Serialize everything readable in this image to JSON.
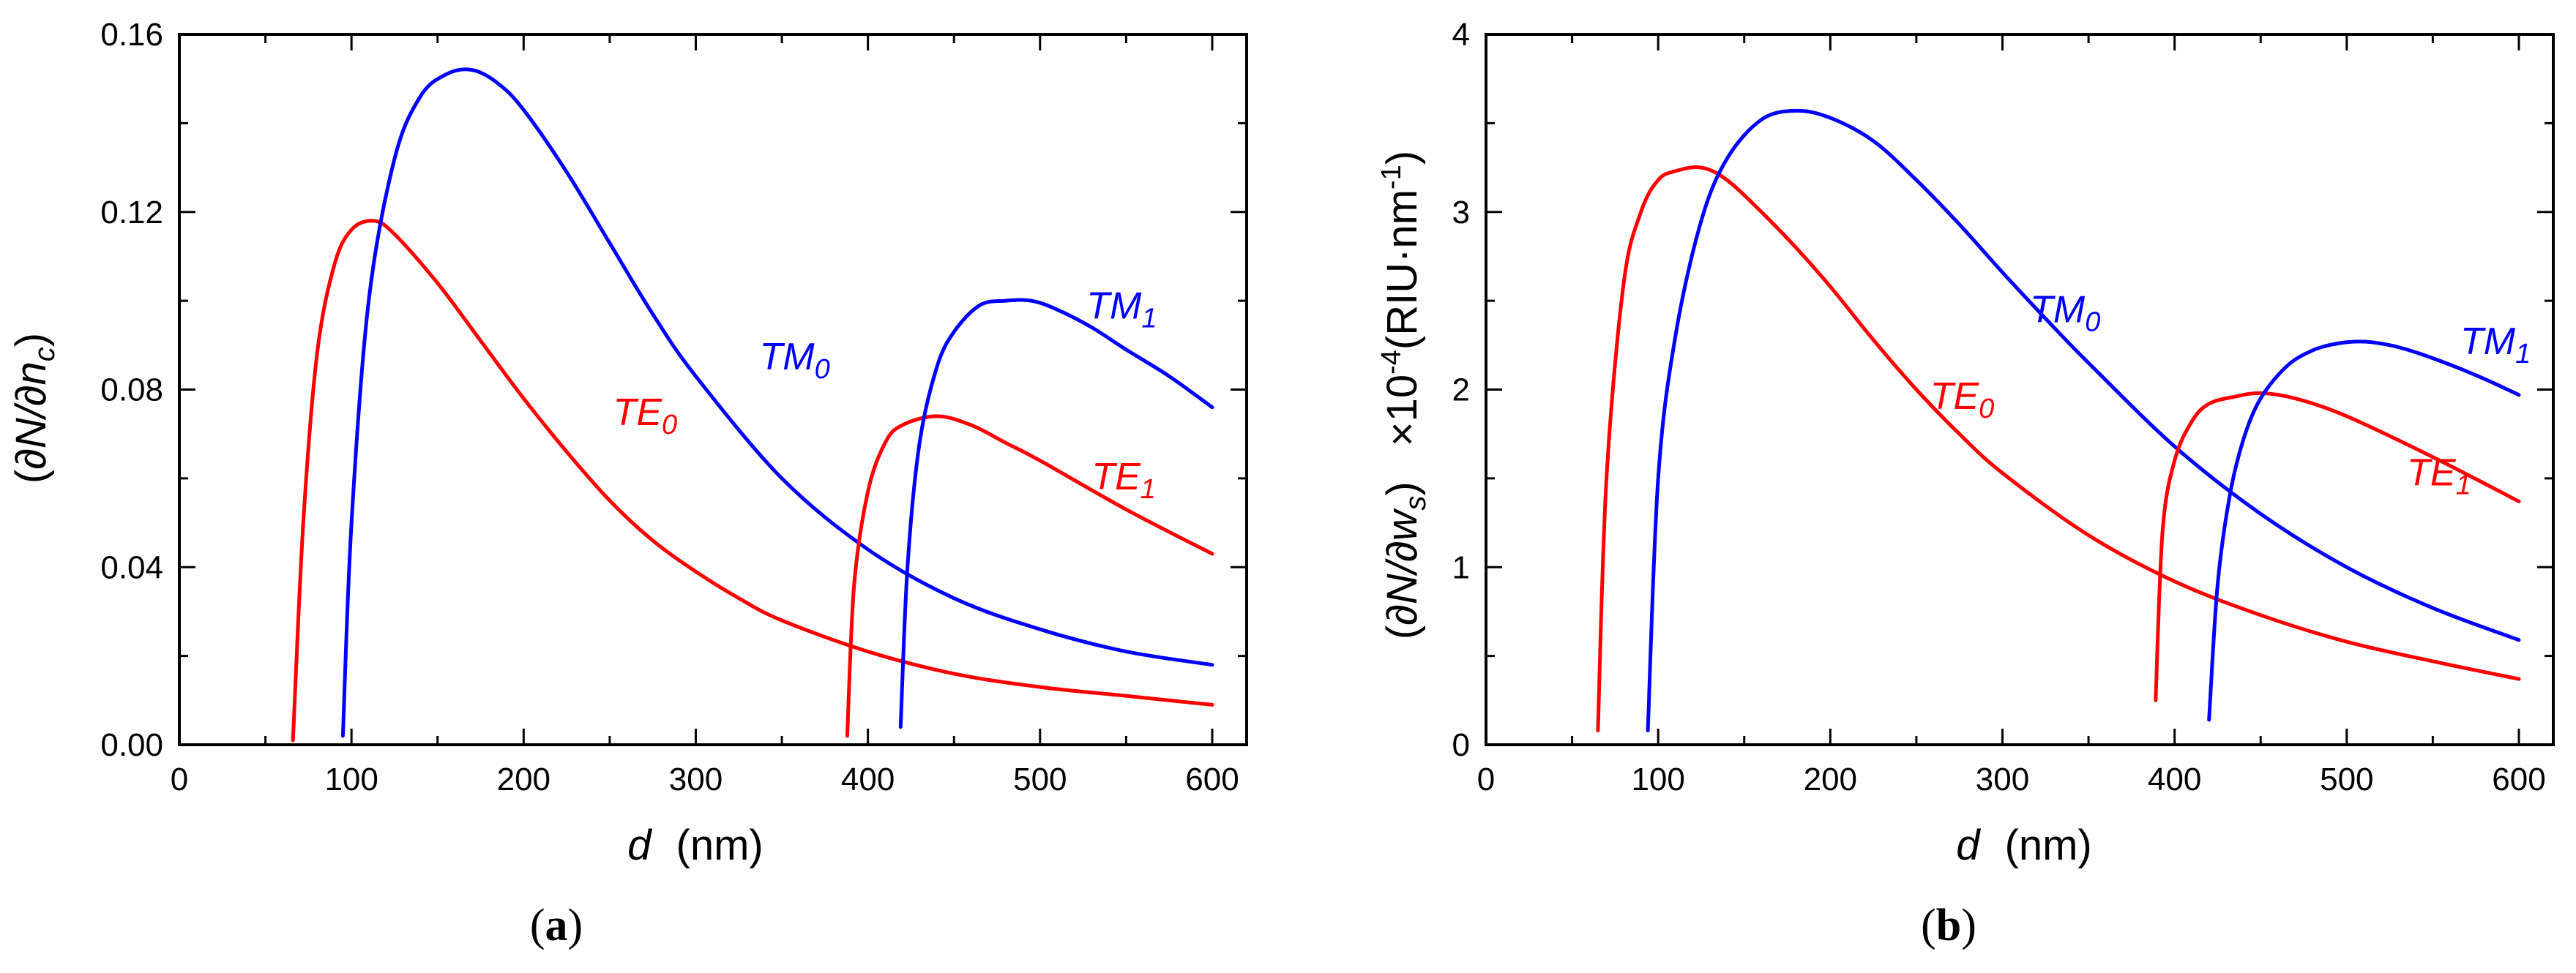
{
  "colors": {
    "te": "#ff0000",
    "tm": "#0000ff",
    "axis": "#000000"
  },
  "chart_data": [
    {
      "type": "line",
      "panel": "a",
      "panel_label": {
        "open": "(",
        "letter": "a",
        "close": ")"
      },
      "xlabel": {
        "var": "d",
        "unit": "(nm)"
      },
      "ylabel": {
        "open": "(",
        "num": "∂N/∂n",
        "sub": "c",
        "close": ")"
      },
      "xlim": [
        0,
        620
      ],
      "ylim": [
        0,
        0.16
      ],
      "xticks": [
        0,
        100,
        200,
        300,
        400,
        500,
        600
      ],
      "xtick_labels": [
        "0",
        "100",
        "200",
        "300",
        "400",
        "500",
        "600"
      ],
      "yticks": [
        0,
        0.04,
        0.08,
        0.12,
        0.16
      ],
      "ytick_labels": [
        "0.00",
        "0.04",
        "0.08",
        "0.12",
        "0.16"
      ],
      "series": [
        {
          "name": "TE0",
          "base": "TE",
          "sub": "0",
          "color": "#ff0000",
          "x": [
            66,
            72,
            80,
            90,
            100,
            113,
            125,
            150,
            175,
            200,
            225,
            250,
            275,
            300,
            325,
            350,
            400,
            450,
            500,
            550,
            600
          ],
          "y": [
            0.001,
            0.05,
            0.088,
            0.108,
            0.116,
            0.118,
            0.115,
            0.104,
            0.091,
            0.078,
            0.066,
            0.055,
            0.046,
            0.039,
            0.033,
            0.028,
            0.021,
            0.016,
            0.013,
            0.011,
            0.009
          ],
          "label_pos": [
            252,
            0.072
          ]
        },
        {
          "name": "TM0",
          "base": "TM",
          "sub": "0",
          "color": "#0000ff",
          "x": [
            95,
            100,
            110,
            125,
            140,
            155,
            170,
            185,
            200,
            225,
            250,
            275,
            300,
            350,
            400,
            450,
            500,
            550,
            600
          ],
          "y": [
            0.002,
            0.05,
            0.1,
            0.132,
            0.146,
            0.151,
            0.152,
            0.149,
            0.143,
            0.129,
            0.113,
            0.097,
            0.083,
            0.06,
            0.044,
            0.033,
            0.026,
            0.021,
            0.018
          ],
          "label_pos": [
            337,
            0.0845
          ]
        },
        {
          "name": "TE1",
          "base": "TE",
          "sub": "1",
          "color": "#ff0000",
          "x": [
            388,
            392,
            400,
            410,
            420,
            440,
            460,
            480,
            500,
            550,
            600
          ],
          "y": [
            0.002,
            0.036,
            0.057,
            0.068,
            0.072,
            0.074,
            0.072,
            0.068,
            0.064,
            0.053,
            0.043
          ],
          "label_pos": [
            530,
            0.0575
          ]
        },
        {
          "name": "TM1",
          "base": "TM",
          "sub": "1",
          "color": "#0000ff",
          "x": [
            419,
            423,
            430,
            440,
            450,
            465,
            480,
            495,
            510,
            530,
            550,
            575,
            600
          ],
          "y": [
            0.004,
            0.04,
            0.068,
            0.085,
            0.093,
            0.099,
            0.1,
            0.1,
            0.098,
            0.094,
            0.089,
            0.083,
            0.076
          ],
          "label_pos": [
            527,
            0.096
          ]
        }
      ]
    },
    {
      "type": "line",
      "panel": "b",
      "panel_label": {
        "open": "(",
        "letter": "b",
        "close": ")"
      },
      "xlabel": {
        "var": "d",
        "unit": "(nm)"
      },
      "ylabel": {
        "open": "(",
        "num": "∂N/∂w",
        "sub": "s",
        "close": ")",
        "scale": "×10",
        "exp": "-4",
        "unit": "(RIU·nm",
        "unit_exp": "-1",
        "unit_close": ")"
      },
      "xlim": [
        0,
        620
      ],
      "ylim": [
        0,
        4
      ],
      "xticks": [
        0,
        100,
        200,
        300,
        400,
        500,
        600
      ],
      "xtick_labels": [
        "0",
        "100",
        "200",
        "300",
        "400",
        "500",
        "600"
      ],
      "yticks": [
        0,
        1,
        2,
        3,
        4
      ],
      "ytick_labels": [
        "0",
        "1",
        "2",
        "3",
        "4"
      ],
      "series": [
        {
          "name": "TE0",
          "base": "TE",
          "sub": "0",
          "color": "#ff0000",
          "x": [
            65,
            70,
            80,
            90,
            100,
            110,
            125,
            140,
            160,
            180,
            200,
            225,
            250,
            275,
            300,
            350,
            400,
            450,
            500,
            550,
            600
          ],
          "y": [
            0.08,
            1.5,
            2.6,
            3.0,
            3.18,
            3.23,
            3.25,
            3.18,
            3.0,
            2.8,
            2.58,
            2.28,
            2.0,
            1.75,
            1.53,
            1.18,
            0.92,
            0.73,
            0.58,
            0.47,
            0.37
          ],
          "label_pos": [
            258,
            1.89
          ]
        },
        {
          "name": "TM0",
          "base": "TM",
          "sub": "0",
          "color": "#0000ff",
          "x": [
            94,
            100,
            110,
            125,
            140,
            160,
            180,
            200,
            225,
            250,
            275,
            300,
            325,
            350,
            400,
            450,
            500,
            550,
            600
          ],
          "y": [
            0.08,
            1.5,
            2.3,
            2.95,
            3.3,
            3.52,
            3.57,
            3.53,
            3.4,
            3.18,
            2.93,
            2.66,
            2.4,
            2.15,
            1.68,
            1.3,
            1.0,
            0.77,
            0.59
          ],
          "label_pos": [
            316,
            2.38
          ]
        },
        {
          "name": "TE1",
          "base": "TE",
          "sub": "1",
          "color": "#ff0000",
          "x": [
            389,
            393,
            400,
            410,
            420,
            435,
            450,
            470,
            500,
            550,
            600
          ],
          "y": [
            0.25,
            1.2,
            1.6,
            1.82,
            1.92,
            1.96,
            1.98,
            1.95,
            1.85,
            1.62,
            1.37
          ],
          "label_pos": [
            535,
            1.46
          ]
        },
        {
          "name": "TM1",
          "base": "TM",
          "sub": "1",
          "color": "#0000ff",
          "x": [
            420,
            425,
            432,
            440,
            450,
            465,
            480,
            495,
            510,
            525,
            540,
            560,
            580,
            600
          ],
          "y": [
            0.14,
            0.9,
            1.4,
            1.72,
            1.95,
            2.13,
            2.22,
            2.26,
            2.27,
            2.25,
            2.21,
            2.14,
            2.06,
            1.97
          ],
          "label_pos": [
            566,
            2.2
          ]
        }
      ]
    }
  ]
}
